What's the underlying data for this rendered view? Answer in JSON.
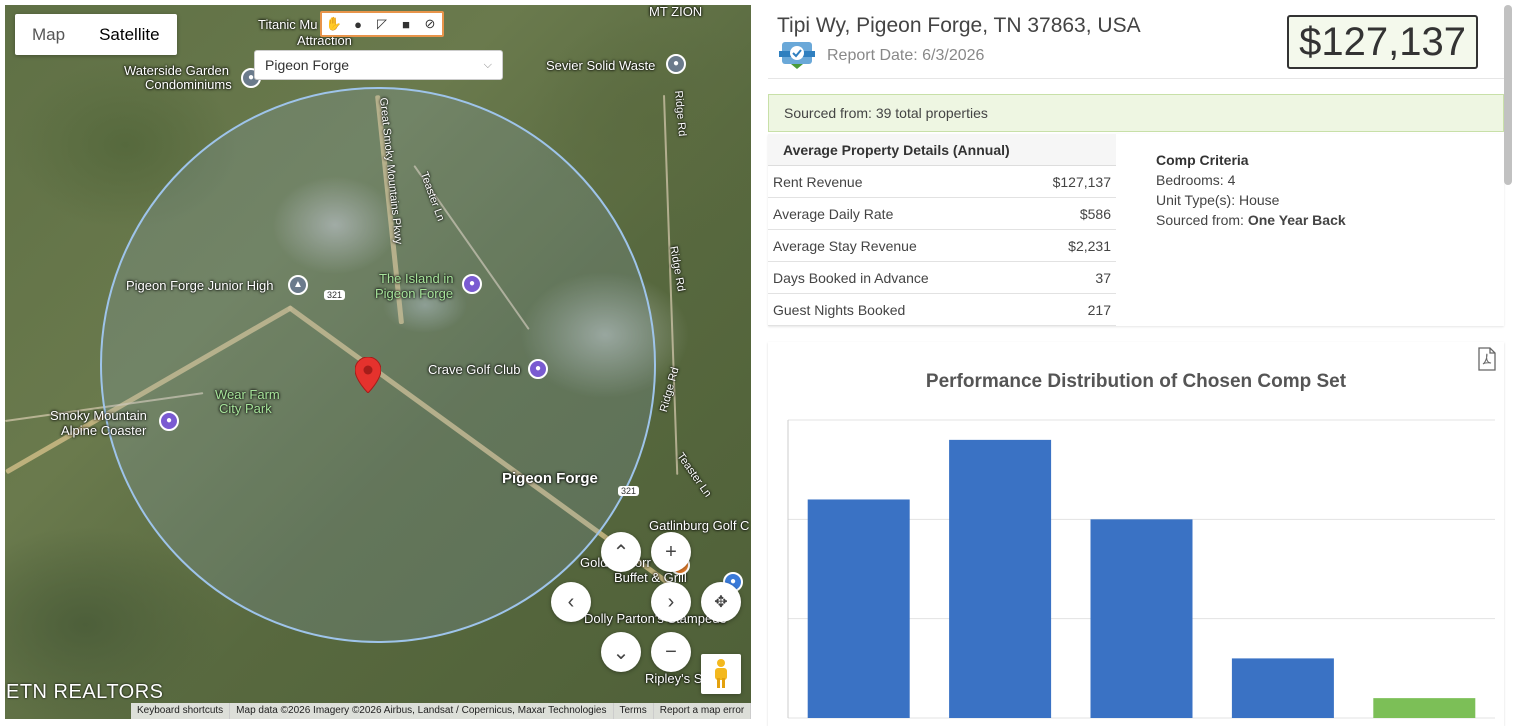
{
  "map": {
    "type_tabs": [
      {
        "label": "Map",
        "active": false
      },
      {
        "label": "Satellite",
        "active": true
      }
    ],
    "draw_tools": [
      "hand-icon",
      "circle-icon",
      "polygon-icon",
      "rectangle-icon",
      "cancel-icon"
    ],
    "search_select": {
      "value": "Pigeon Forge"
    },
    "labels": {
      "titanic": "Titanic Mu",
      "attraction": "Attraction",
      "mt_zion": "MT ZION",
      "waterside": "Waterside Garden",
      "condominiums": "Condominiums",
      "sevier": "Sevier Solid Waste",
      "junior_high": "Pigeon Forge Junior High",
      "island_1": "The Island in",
      "island_2": "Pigeon Forge",
      "crave": "Crave Golf Club",
      "wear_farm_1": "Wear Farm",
      "wear_farm_2": "City Park",
      "smoky_1": "Smoky Mountain",
      "smoky_2": "Alpine Coaster",
      "pigeon_forge": "Pigeon Forge",
      "gatlinburg": "Gatlinburg Golf C",
      "golden": "Golden Corr",
      "buffet": "Buffet & Grill",
      "dolly": "Dolly Parton's Stampede",
      "ripley": "Ripley's S",
      "road_parkway": "Great Smoky Mountains Pkwy",
      "road_teaster1": "Teaster Ln",
      "road_teaster2": "Teaster Ln",
      "road_ridge1": "Ridge Rd",
      "road_ridge2": "Ridge Rd",
      "road_ridge3": "Ridge Rd",
      "route_321a": "321",
      "route_321b": "321"
    },
    "brand": "ETN REALTORS",
    "attribution": [
      "Keyboard shortcuts",
      "Map data ©2026 Imagery ©2026 Airbus, Landsat / Copernicus, Maxar Technologies",
      "Terms",
      "Report a map error"
    ]
  },
  "header": {
    "address": "Tipi Wy, Pigeon Forge, TN 37863, USA",
    "report_date": "Report Date: 6/3/2026",
    "price": "$127,137"
  },
  "sourced": "Sourced from: 39 total properties",
  "details": {
    "title": "Average Property Details (Annual)",
    "rows": [
      {
        "label": "Rent Revenue",
        "value": "$127,137"
      },
      {
        "label": "Average Daily Rate",
        "value": "$586"
      },
      {
        "label": "Average Stay Revenue",
        "value": "$2,231"
      },
      {
        "label": "Days Booked in Advance",
        "value": "37"
      },
      {
        "label": "Guest Nights Booked",
        "value": "217"
      }
    ]
  },
  "criteria": {
    "title": "Comp Criteria",
    "bedrooms": "Bedrooms: 4",
    "unit_types": "Unit Type(s): House",
    "sourced_label": "Sourced from: ",
    "sourced_value": "One Year Back"
  },
  "chart_data": {
    "type": "bar",
    "title": "Performance Distribution of Chosen Comp Set",
    "xlabel": "",
    "ylabel": "",
    "categories": [
      "",
      "",
      "",
      "",
      ""
    ],
    "values": [
      11,
      14,
      10,
      3,
      1
    ],
    "colors": [
      "#3a72c4",
      "#3a72c4",
      "#3a72c4",
      "#3a72c4",
      "#7cbf57"
    ],
    "ylim": [
      0,
      15
    ],
    "grid": true
  }
}
